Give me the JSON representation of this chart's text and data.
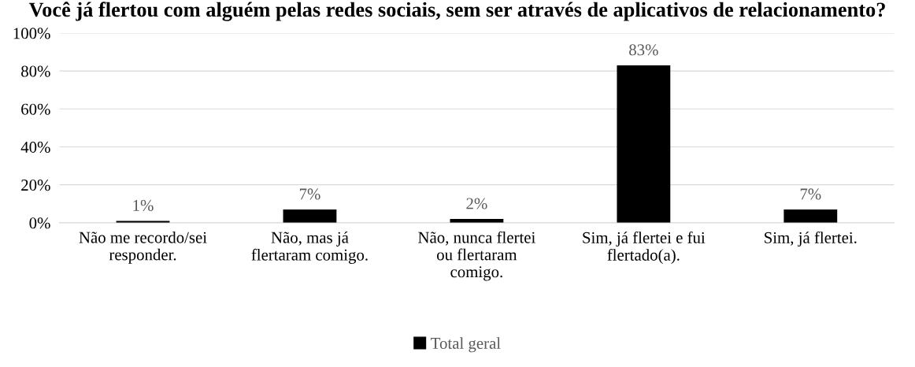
{
  "chart_data": {
    "type": "bar",
    "title": "Você já flertou com alguém pelas redes sociais, sem ser através de aplicativos de relacionamento?",
    "categories": [
      "Não me recordo/sei\nresponder.",
      "Não, mas já\nflertaram comigo.",
      "Não, nunca flertei\nou flertaram\ncomigo.",
      "Sim, já flertei e fui\nflertado(a).",
      "Sim, já flertei."
    ],
    "series": [
      {
        "name": "Total geral",
        "color": "#000000",
        "values": [
          1,
          7,
          2,
          83,
          7
        ],
        "value_labels": [
          "1%",
          "7%",
          "2%",
          "83%",
          "7%"
        ]
      }
    ],
    "ylim": [
      0,
      100
    ],
    "yticks": [
      {
        "value": 0,
        "label": "0%"
      },
      {
        "value": 20,
        "label": "20%"
      },
      {
        "value": 40,
        "label": "40%"
      },
      {
        "value": 60,
        "label": "60%"
      },
      {
        "value": 80,
        "label": "80%"
      },
      {
        "value": 100,
        "label": "100%"
      }
    ],
    "grid": "y",
    "legend": "bottom"
  }
}
